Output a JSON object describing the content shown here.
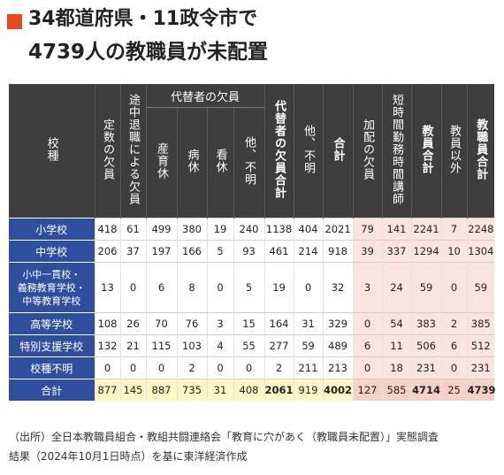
{
  "title": {
    "line1": "34都道府県・11政令市で",
    "line2": "4739人の教職員が未配置"
  },
  "header": {
    "school_type": "校種",
    "teinai": "定数の欠員",
    "tochu": "途中退職による欠員",
    "daitai_group": "代替者の欠員",
    "sanikukyu": "産育休",
    "byokyu": "病休",
    "kaikyu": "看休",
    "daitai_other": "他、不明",
    "daitai_total": "代替者の欠員合計",
    "other": "他、不明",
    "subtotal": "合計",
    "kahai": "加配の欠員",
    "tanjikan": "短時間勤務時間講師",
    "kyoin_total": "教員合計",
    "kyoin_igai": "教員以外",
    "kyoshokuin_total": "教職員合計"
  },
  "rows": [
    {
      "name": "小学校",
      "v": [
        "418",
        "61",
        "499",
        "380",
        "19",
        "240",
        "1138",
        "404",
        "2021",
        "79",
        "141",
        "2241",
        "7",
        "2248"
      ]
    },
    {
      "name": "中学校",
      "v": [
        "206",
        "37",
        "197",
        "166",
        "5",
        "93",
        "461",
        "214",
        "918",
        "39",
        "337",
        "1294",
        "10",
        "1304"
      ]
    },
    {
      "name": "小中一貫校・義務教育学校・中等教育学校",
      "lines": [
        "小中一貫校・",
        "義務教育学校・",
        "中等教育学校"
      ],
      "v": [
        "13",
        "0",
        "6",
        "8",
        "0",
        "5",
        "19",
        "0",
        "32",
        "3",
        "24",
        "59",
        "0",
        "59"
      ]
    },
    {
      "name": "高等学校",
      "v": [
        "108",
        "26",
        "70",
        "76",
        "3",
        "15",
        "164",
        "31",
        "329",
        "0",
        "54",
        "383",
        "2",
        "385"
      ]
    },
    {
      "name": "特別支援学校",
      "v": [
        "132",
        "21",
        "115",
        "103",
        "4",
        "55",
        "277",
        "59",
        "489",
        "6",
        "11",
        "506",
        "6",
        "512"
      ]
    },
    {
      "name": "校種不明",
      "v": [
        "0",
        "0",
        "0",
        "2",
        "0",
        "0",
        "2",
        "211",
        "213",
        "0",
        "18",
        "231",
        "0",
        "231"
      ]
    }
  ],
  "total": {
    "name": "合計",
    "v": [
      "877",
      "145",
      "887",
      "735",
      "31",
      "408",
      "2061",
      "919",
      "4002",
      "127",
      "585",
      "4714",
      "25",
      "4739"
    ]
  },
  "source": {
    "line1": "（出所）全日本教職員組合・教組共闘連絡会「教育に穴があく（教職員未配置）」実態調査",
    "line2": "結果（2024年10月1日時点）を基に東洋経済作成"
  },
  "colors": {
    "accent": "#e8481c",
    "header_bg": "#3e3e3e",
    "row_header_bg": "#2f4f9e",
    "pink": "#fbe3df",
    "total_yellow": "#fcf7c4"
  }
}
